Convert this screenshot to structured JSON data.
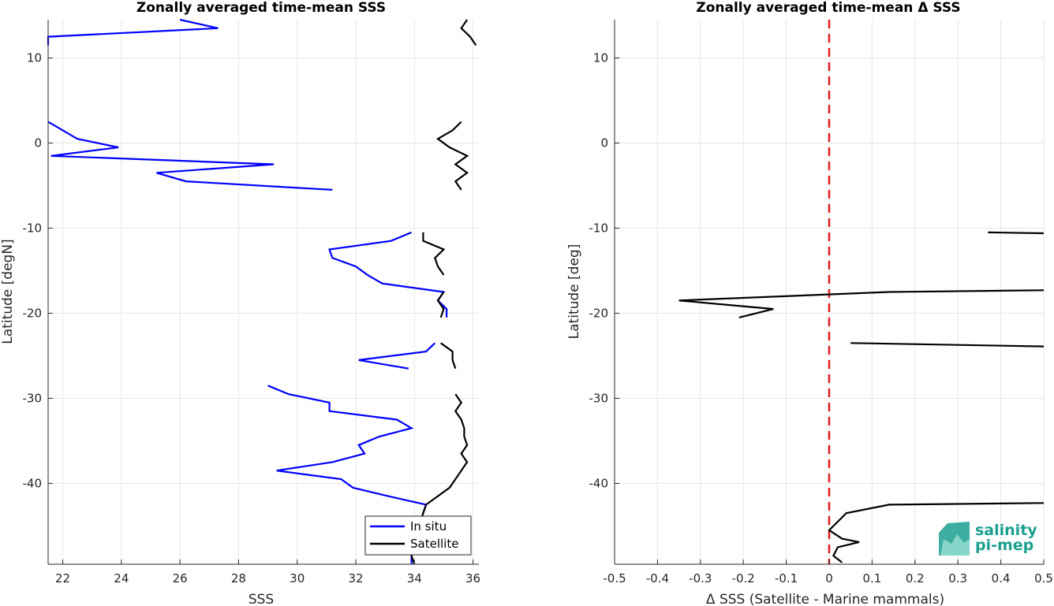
{
  "chart_data": [
    {
      "type": "line",
      "title": "Zonally averaged time-mean SSS",
      "xlabel": "SSS",
      "ylabel": "Latitude [degN]",
      "xlim": [
        21.5,
        36.2
      ],
      "ylim": [
        -49.5,
        14.5
      ],
      "xticks": [
        22,
        24,
        26,
        28,
        30,
        32,
        34,
        36
      ],
      "yticks": [
        -40,
        -30,
        -20,
        -10,
        0,
        10
      ],
      "grid": true,
      "legend_position": "bottom-right",
      "series": [
        {
          "name": "In situ",
          "color": "#0000ff",
          "segments": [
            [
              [
                26.0,
                14.5
              ],
              [
                27.3,
                13.5
              ],
              [
                21.5,
                12.5
              ],
              [
                21.5,
                11.5
              ]
            ],
            [
              [
                21.5,
                2.5
              ],
              [
                22.0,
                1.5
              ],
              [
                22.5,
                0.5
              ],
              [
                23.9,
                -0.5
              ],
              [
                21.6,
                -1.5
              ],
              [
                29.2,
                -2.5
              ],
              [
                25.2,
                -3.5
              ],
              [
                26.2,
                -4.5
              ],
              [
                31.2,
                -5.5
              ]
            ],
            [
              [
                33.9,
                -10.5
              ],
              [
                33.2,
                -11.5
              ],
              [
                31.1,
                -12.5
              ],
              [
                31.2,
                -13.5
              ],
              [
                32.0,
                -14.5
              ],
              [
                32.4,
                -15.5
              ],
              [
                32.9,
                -16.5
              ],
              [
                35.0,
                -17.5
              ],
              [
                34.8,
                -18.5
              ],
              [
                35.1,
                -19.5
              ],
              [
                35.1,
                -20.5
              ]
            ],
            [
              [
                34.7,
                -23.5
              ],
              [
                34.4,
                -24.5
              ],
              [
                32.1,
                -25.5
              ],
              [
                33.8,
                -26.5
              ]
            ],
            [
              [
                29.0,
                -28.5
              ],
              [
                29.7,
                -29.5
              ],
              [
                31.1,
                -30.5
              ],
              [
                31.1,
                -31.5
              ],
              [
                33.4,
                -32.5
              ],
              [
                33.9,
                -33.5
              ],
              [
                32.8,
                -34.5
              ],
              [
                32.1,
                -35.5
              ],
              [
                32.3,
                -36.5
              ],
              [
                31.2,
                -37.5
              ],
              [
                29.3,
                -38.5
              ],
              [
                31.5,
                -39.5
              ],
              [
                31.9,
                -40.5
              ],
              [
                33.1,
                -41.5
              ],
              [
                34.4,
                -42.5
              ],
              [
                34.3,
                -43.5
              ],
              [
                34.2,
                -44.5
              ],
              [
                34.1,
                -45.5
              ],
              [
                34.0,
                -46.5
              ],
              [
                34.0,
                -47.5
              ],
              [
                33.9,
                -48.5
              ],
              [
                33.9,
                -49.5
              ]
            ]
          ]
        },
        {
          "name": "Satellite",
          "color": "#000000",
          "segments": [
            [
              [
                35.8,
                14.5
              ],
              [
                35.6,
                13.5
              ],
              [
                35.9,
                12.5
              ],
              [
                36.1,
                11.5
              ]
            ],
            [
              [
                35.6,
                2.5
              ],
              [
                35.3,
                1.5
              ],
              [
                34.8,
                0.5
              ],
              [
                35.2,
                -0.5
              ],
              [
                35.8,
                -1.5
              ],
              [
                35.4,
                -2.5
              ],
              [
                35.8,
                -3.5
              ],
              [
                35.4,
                -4.5
              ],
              [
                35.6,
                -5.5
              ]
            ],
            [
              [
                34.3,
                -10.5
              ],
              [
                34.3,
                -11.5
              ],
              [
                35.0,
                -12.5
              ],
              [
                34.7,
                -13.5
              ],
              [
                34.8,
                -14.5
              ],
              [
                35.0,
                -15.5
              ]
            ],
            [
              [
                35.0,
                -17.5
              ],
              [
                34.8,
                -18.5
              ],
              [
                35.0,
                -19.5
              ],
              [
                34.9,
                -20.5
              ]
            ],
            [
              [
                34.9,
                -23.5
              ],
              [
                35.3,
                -24.5
              ],
              [
                35.3,
                -25.5
              ],
              [
                35.4,
                -26.5
              ]
            ],
            [
              [
                35.4,
                -29.5
              ],
              [
                35.6,
                -30.5
              ],
              [
                35.4,
                -31.5
              ],
              [
                35.6,
                -32.5
              ],
              [
                35.7,
                -33.5
              ],
              [
                35.7,
                -34.5
              ],
              [
                35.8,
                -35.5
              ],
              [
                35.6,
                -36.5
              ],
              [
                35.8,
                -37.5
              ],
              [
                35.6,
                -38.5
              ],
              [
                35.4,
                -39.5
              ],
              [
                35.2,
                -40.5
              ],
              [
                34.8,
                -41.5
              ],
              [
                34.4,
                -42.5
              ],
              [
                34.3,
                -43.5
              ],
              [
                34.2,
                -44.5
              ],
              [
                34.2,
                -45.5
              ],
              [
                34.0,
                -46.5
              ],
              [
                34.0,
                -47.5
              ],
              [
                33.9,
                -48.5
              ],
              [
                34.0,
                -49.5
              ]
            ]
          ]
        }
      ]
    },
    {
      "type": "line",
      "title": "Zonally averaged time-mean Δ SSS",
      "xlabel": "Δ SSS (Satellite - Marine mammals)",
      "ylabel": "Latitude [deg]",
      "xlim": [
        -0.5,
        0.5
      ],
      "ylim": [
        -49.5,
        14.5
      ],
      "xticks": [
        -0.5,
        -0.4,
        -0.3,
        -0.2,
        -0.1,
        0,
        0.1,
        0.2,
        0.3,
        0.4,
        0.5
      ],
      "yticks": [
        -40,
        -30,
        -20,
        -10,
        0,
        10
      ],
      "grid": true,
      "reference_line": {
        "x": 0,
        "color": "#e41a1c",
        "style": "dashed"
      },
      "series": [
        {
          "color": "#000000",
          "segments": [
            [
              [
                0.37,
                -10.5
              ],
              [
                0.5,
                -10.6
              ]
            ],
            [
              [
                0.5,
                -17.3
              ],
              [
                0.14,
                -17.5
              ],
              [
                -0.35,
                -18.5
              ],
              [
                -0.13,
                -19.5
              ],
              [
                -0.21,
                -20.5
              ]
            ],
            [
              [
                0.05,
                -23.5
              ],
              [
                0.5,
                -23.9
              ]
            ],
            [
              [
                0.5,
                -42.3
              ],
              [
                0.14,
                -42.5
              ],
              [
                0.04,
                -43.5
              ],
              [
                0.02,
                -44.5
              ],
              [
                0.0,
                -45.5
              ],
              [
                0.03,
                -46.5
              ],
              [
                0.07,
                -46.9
              ],
              [
                0.02,
                -47.5
              ],
              [
                0.01,
                -48.5
              ],
              [
                0.03,
                -49.3
              ]
            ]
          ]
        }
      ]
    }
  ],
  "logo": {
    "line1": "salinity",
    "line2": "pi-mep",
    "color": "#1a9f8f"
  }
}
